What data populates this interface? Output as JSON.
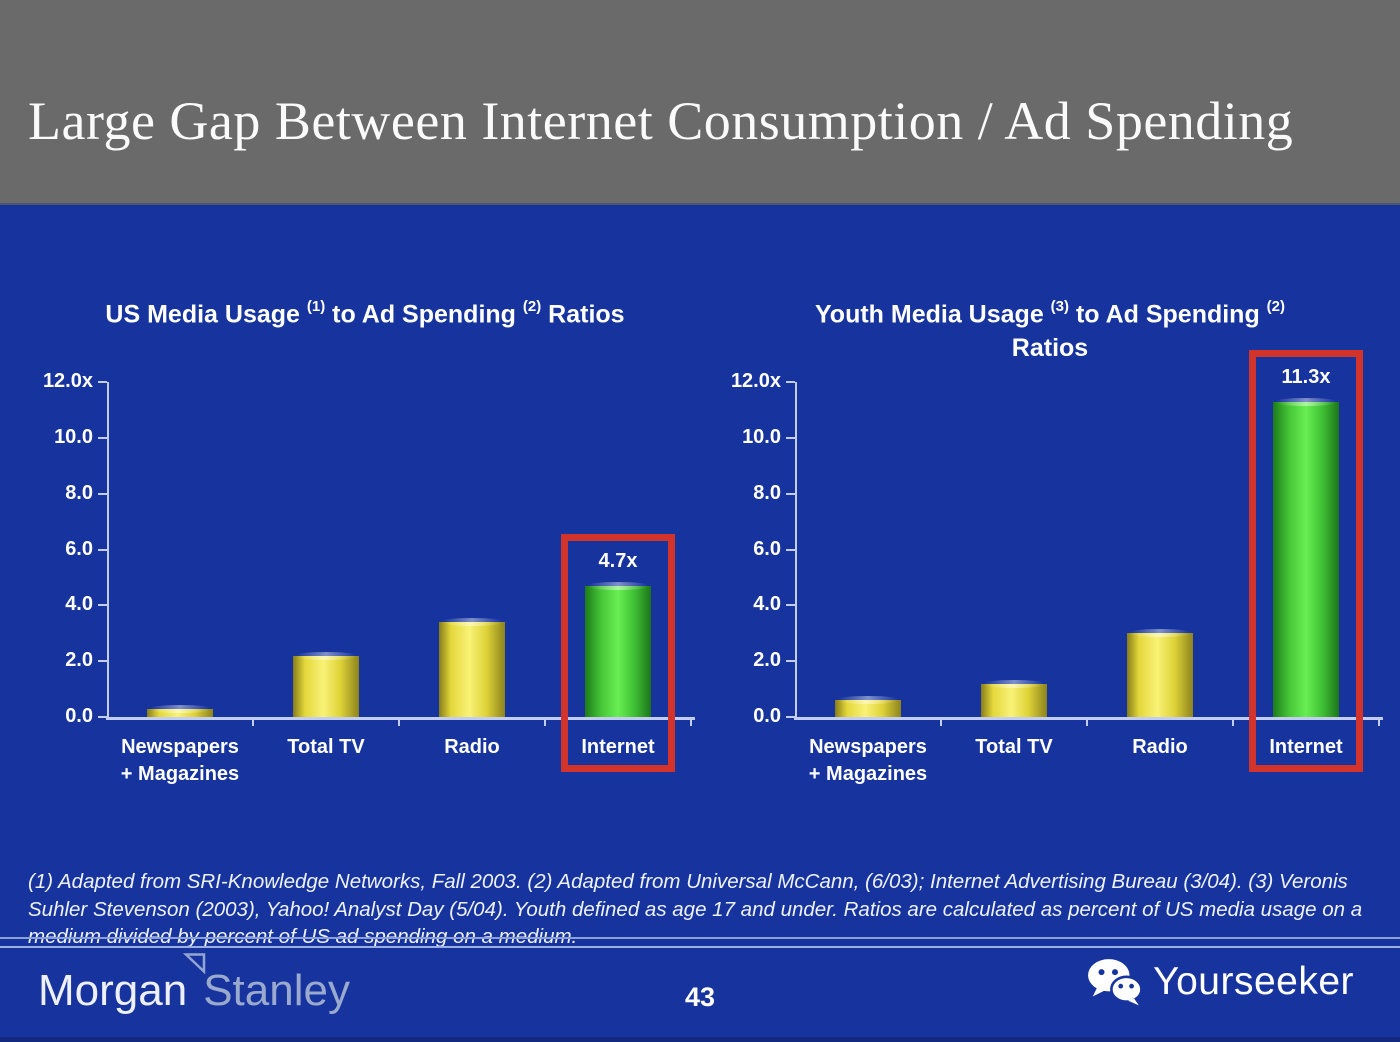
{
  "slide_title": "Large Gap Between Internet Consumption / Ad Spending",
  "chart_data": [
    {
      "type": "bar",
      "title": "US Media Usage (1) to Ad Spending (2) Ratios",
      "title_parts": [
        {
          "t": "US Media Usage "
        },
        {
          "s": "(1)"
        },
        {
          "t": " to Ad Spending "
        },
        {
          "s": "(2)"
        },
        {
          "t": " Ratios"
        }
      ],
      "categories": [
        "Newspapers\n+ Magazines",
        "Total TV",
        "Radio",
        "Internet"
      ],
      "values": [
        0.3,
        2.2,
        3.4,
        4.7
      ],
      "bar_labels": [
        "",
        "",
        "",
        "4.7x"
      ],
      "bar_colors": [
        "yellow",
        "yellow",
        "yellow",
        "green"
      ],
      "highlight_index": 3,
      "yticks": [
        "12.0x",
        "10.0",
        "8.0",
        "6.0",
        "4.0",
        "2.0",
        "0.0"
      ],
      "ylim": [
        0,
        12
      ],
      "xlabel": "",
      "ylabel": "",
      "grid": false,
      "legend": null
    },
    {
      "type": "bar",
      "title": "Youth Media Usage (3) to Ad Spending (2) Ratios",
      "title_parts": [
        {
          "t": "Youth Media Usage "
        },
        {
          "s": "(3)"
        },
        {
          "t": " to Ad Spending "
        },
        {
          "s": "(2)"
        },
        {
          "br": true
        },
        {
          "t": "Ratios"
        }
      ],
      "categories": [
        "Newspapers\n+ Magazines",
        "Total TV",
        "Radio",
        "Internet"
      ],
      "values": [
        0.6,
        1.2,
        3.0,
        11.3
      ],
      "bar_labels": [
        "",
        "",
        "",
        "11.3x"
      ],
      "bar_colors": [
        "yellow",
        "yellow",
        "yellow",
        "green"
      ],
      "highlight_index": 3,
      "yticks": [
        "12.0x",
        "10.0",
        "8.0",
        "6.0",
        "4.0",
        "2.0",
        "0.0"
      ],
      "ylim": [
        0,
        12
      ],
      "xlabel": "",
      "ylabel": "",
      "grid": false,
      "legend": null
    }
  ],
  "footnote": "(1) Adapted from SRI-Knowledge Networks, Fall 2003.  (2) Adapted from Universal McCann, (6/03); Internet Advertising Bureau (3/04). (3) Veronis Suhler Stevenson (2003), Yahoo! Analyst Day (5/04).  Youth defined as age 17 and under.  Ratios are calculated as percent of US media usage on a medium divided by percent of US ad spending on a medium.",
  "footer": {
    "page_number": "43",
    "brand_morgan": "Morgan",
    "brand_stanley": "Stanley",
    "watermark_label": "Yourseeker"
  },
  "icons": {
    "wechat": "wechat-icon",
    "ms_triangle": "morgan-stanley-triangle-icon"
  },
  "colors": {
    "slide_bg": "#17349e",
    "header_bg": "#6a6a6a",
    "bar_yellow": "#e8dc3e",
    "bar_green": "#4ecf3e",
    "highlight_red": "#d2332a",
    "axis": "#c2cdf0",
    "text": "#ffffff"
  }
}
